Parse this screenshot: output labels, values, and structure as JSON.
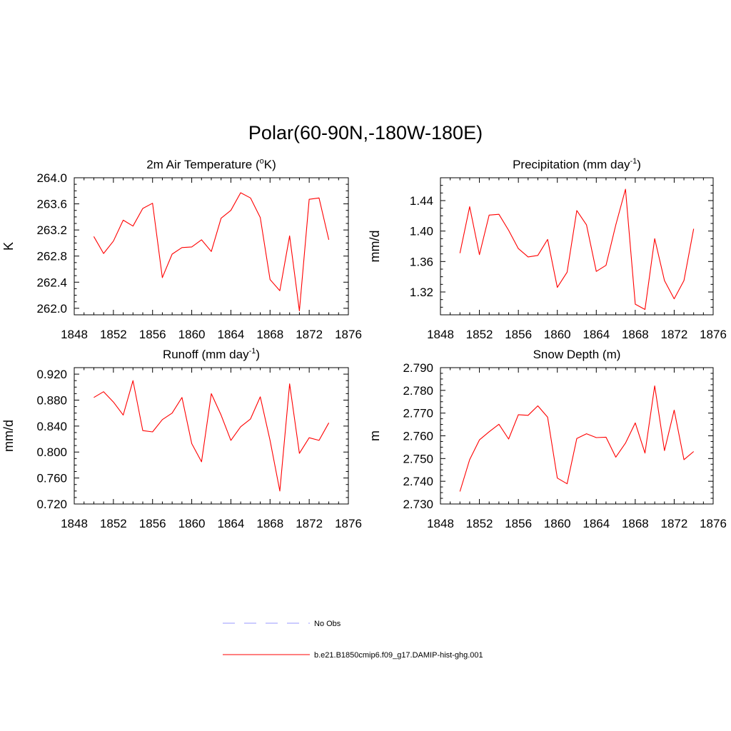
{
  "figure": {
    "title": "Polar(60-90N,-180W-180E)",
    "legend": [
      {
        "label": "No Obs",
        "color": "#9999ff",
        "dash": "dashed"
      },
      {
        "label": "b.e21.B1850cmip6.f09_g17.DAMIP-hist-ghg.001",
        "color": "#ff0000",
        "dash": "solid"
      }
    ]
  },
  "chart_data": [
    {
      "type": "line",
      "title": "2m Air Temperature (",
      "title_sup": "o",
      "title_after": "K)",
      "ylabel": "K",
      "xlim": [
        1848,
        1876
      ],
      "ylim": [
        261.9,
        264.0
      ],
      "xticks": [
        "1848",
        "1852",
        "1856",
        "1860",
        "1864",
        "1868",
        "1872",
        "1876"
      ],
      "yticks": [
        "262.0",
        "262.4",
        "262.8",
        "263.2",
        "263.6",
        "264.0"
      ],
      "series": [
        {
          "color": "#ff0000",
          "x": [
            1850,
            1851,
            1852,
            1853,
            1854,
            1855,
            1856,
            1857,
            1858,
            1859,
            1860,
            1861,
            1862,
            1863,
            1864,
            1865,
            1866,
            1867,
            1868,
            1869,
            1870,
            1871,
            1872,
            1873,
            1874
          ],
          "y": [
            263.1,
            262.84,
            263.03,
            263.35,
            263.26,
            263.53,
            263.61,
            262.47,
            262.83,
            262.93,
            262.94,
            263.05,
            262.87,
            263.38,
            263.5,
            263.77,
            263.69,
            263.39,
            262.44,
            262.27,
            263.11,
            261.96,
            263.67,
            263.69,
            263.05
          ]
        }
      ]
    },
    {
      "type": "line",
      "title": "Precipitation (mm day",
      "title_sup": "-1",
      "title_after": ")",
      "ylabel": "mm/d",
      "xlim": [
        1848,
        1876
      ],
      "ylim": [
        1.29,
        1.47
      ],
      "xticks": [
        "1848",
        "1852",
        "1856",
        "1860",
        "1864",
        "1868",
        "1872",
        "1876"
      ],
      "yticks": [
        "1.32",
        "1.36",
        "1.40",
        "1.44"
      ],
      "series": [
        {
          "color": "#ff0000",
          "x": [
            1850,
            1851,
            1852,
            1853,
            1854,
            1855,
            1856,
            1857,
            1858,
            1859,
            1860,
            1861,
            1862,
            1863,
            1864,
            1865,
            1866,
            1867,
            1868,
            1869,
            1870,
            1871,
            1872,
            1873,
            1874
          ],
          "y": [
            1.371,
            1.432,
            1.369,
            1.421,
            1.422,
            1.401,
            1.377,
            1.366,
            1.368,
            1.389,
            1.326,
            1.346,
            1.427,
            1.408,
            1.347,
            1.355,
            1.408,
            1.455,
            1.304,
            1.297,
            1.39,
            1.335,
            1.311,
            1.335,
            1.403
          ]
        }
      ]
    },
    {
      "type": "line",
      "title": "Runoff (mm day",
      "title_sup": "-1",
      "title_after": ")",
      "ylabel": "mm/d",
      "xlim": [
        1848,
        1876
      ],
      "ylim": [
        0.72,
        0.93
      ],
      "xticks": [
        "1848",
        "1852",
        "1856",
        "1860",
        "1864",
        "1868",
        "1872",
        "1876"
      ],
      "yticks": [
        "0.720",
        "0.760",
        "0.800",
        "0.840",
        "0.880",
        "0.920"
      ],
      "series": [
        {
          "color": "#ff0000",
          "x": [
            1850,
            1851,
            1852,
            1853,
            1854,
            1855,
            1856,
            1857,
            1858,
            1859,
            1860,
            1861,
            1862,
            1863,
            1864,
            1865,
            1866,
            1867,
            1868,
            1869,
            1870,
            1871,
            1872,
            1873,
            1874
          ],
          "y": [
            0.884,
            0.893,
            0.877,
            0.857,
            0.91,
            0.833,
            0.831,
            0.85,
            0.86,
            0.884,
            0.813,
            0.785,
            0.89,
            0.857,
            0.818,
            0.839,
            0.851,
            0.885,
            0.818,
            0.74,
            0.905,
            0.798,
            0.822,
            0.818,
            0.845
          ]
        }
      ]
    },
    {
      "type": "line",
      "title": "Snow Depth (m)",
      "title_sup": "",
      "title_after": "",
      "ylabel": "m",
      "xlim": [
        1848,
        1876
      ],
      "ylim": [
        2.73,
        2.79
      ],
      "xticks": [
        "1848",
        "1852",
        "1856",
        "1860",
        "1864",
        "1868",
        "1872",
        "1876"
      ],
      "yticks": [
        "2.730",
        "2.740",
        "2.750",
        "2.760",
        "2.770",
        "2.780",
        "2.790"
      ],
      "series": [
        {
          "color": "#ff0000",
          "x": [
            1850,
            1851,
            1852,
            1853,
            1854,
            1855,
            1856,
            1857,
            1858,
            1859,
            1860,
            1861,
            1862,
            1863,
            1864,
            1865,
            1866,
            1867,
            1868,
            1869,
            1870,
            1871,
            1872,
            1873,
            1874
          ],
          "y": [
            2.7355,
            2.7495,
            2.7582,
            2.7618,
            2.7651,
            2.7586,
            2.7693,
            2.769,
            2.7732,
            2.7682,
            2.7414,
            2.7389,
            2.7588,
            2.7609,
            2.7592,
            2.7594,
            2.7506,
            2.7568,
            2.7657,
            2.7524,
            2.782,
            2.7535,
            2.7713,
            2.7495,
            2.7531
          ]
        }
      ]
    }
  ]
}
